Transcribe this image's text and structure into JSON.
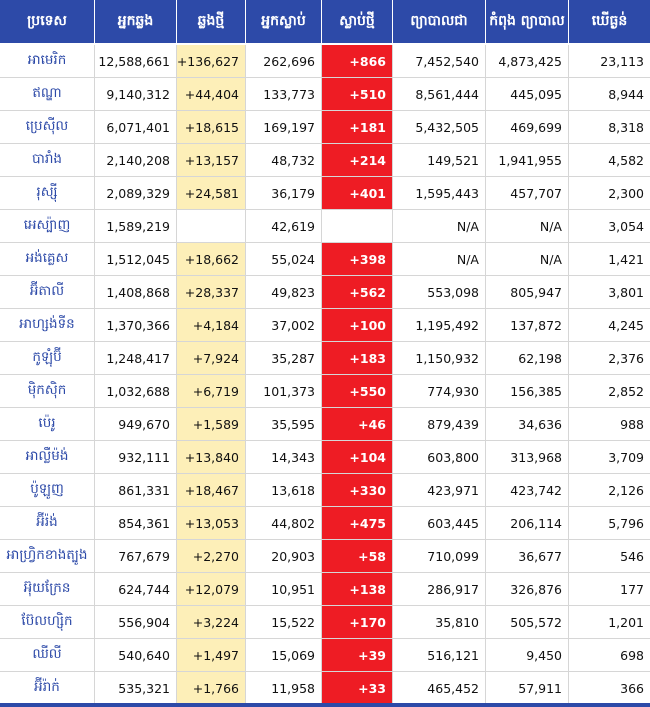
{
  "headers": [
    "ប្រទេស",
    "អ្នកឆ្លង",
    "ឆ្លងថ្មី",
    "អ្នកស្លាប់",
    "ស្លាប់ថ្មី",
    "ព្យាបាលជា",
    "កំពុង ព្យាបាល",
    "ឃើធ្ងន់"
  ],
  "rows": [
    {
      "country": "អាមេរិក",
      "cases": "12,588,661",
      "new_cases": "+136,627",
      "deaths": "262,696",
      "new_deaths": "+866",
      "recovered": "7,452,540",
      "active": "4,873,425",
      "critical": "23,113"
    },
    {
      "country": "ឥណ្ឌា",
      "cases": "9,140,312",
      "new_cases": "+44,404",
      "deaths": "133,773",
      "new_deaths": "+510",
      "recovered": "8,561,444",
      "active": "445,095",
      "critical": "8,944"
    },
    {
      "country": "ប្រេស៊ីល",
      "cases": "6,071,401",
      "new_cases": "+18,615",
      "deaths": "169,197",
      "new_deaths": "+181",
      "recovered": "5,432,505",
      "active": "469,699",
      "critical": "8,318"
    },
    {
      "country": "បារាំង",
      "cases": "2,140,208",
      "new_cases": "+13,157",
      "deaths": "48,732",
      "new_deaths": "+214",
      "recovered": "149,521",
      "active": "1,941,955",
      "critical": "4,582"
    },
    {
      "country": "រុស្ស៊ី",
      "cases": "2,089,329",
      "new_cases": "+24,581",
      "deaths": "36,179",
      "new_deaths": "+401",
      "recovered": "1,595,443",
      "active": "457,707",
      "critical": "2,300"
    },
    {
      "country": "អេស្ប៉ាញ",
      "cases": "1,589,219",
      "new_cases": "",
      "deaths": "42,619",
      "new_deaths": "",
      "recovered": "N/A",
      "active": "N/A",
      "critical": "3,054"
    },
    {
      "country": "អង់គ្លេស",
      "cases": "1,512,045",
      "new_cases": "+18,662",
      "deaths": "55,024",
      "new_deaths": "+398",
      "recovered": "N/A",
      "active": "N/A",
      "critical": "1,421"
    },
    {
      "country": "អ៊ីតាលី",
      "cases": "1,408,868",
      "new_cases": "+28,337",
      "deaths": "49,823",
      "new_deaths": "+562",
      "recovered": "553,098",
      "active": "805,947",
      "critical": "3,801"
    },
    {
      "country": "អាហ្សង់ទីន",
      "cases": "1,370,366",
      "new_cases": "+4,184",
      "deaths": "37,002",
      "new_deaths": "+100",
      "recovered": "1,195,492",
      "active": "137,872",
      "critical": "4,245"
    },
    {
      "country": "កូឡុំប៊ី",
      "cases": "1,248,417",
      "new_cases": "+7,924",
      "deaths": "35,287",
      "new_deaths": "+183",
      "recovered": "1,150,932",
      "active": "62,198",
      "critical": "2,376"
    },
    {
      "country": "ម៉ិកស៊ិក",
      "cases": "1,032,688",
      "new_cases": "+6,719",
      "deaths": "101,373",
      "new_deaths": "+550",
      "recovered": "774,930",
      "active": "156,385",
      "critical": "2,852"
    },
    {
      "country": "ប៉េរូ",
      "cases": "949,670",
      "new_cases": "+1,589",
      "deaths": "35,595",
      "new_deaths": "+46",
      "recovered": "879,439",
      "active": "34,636",
      "critical": "988"
    },
    {
      "country": "អាល្លឺម៉ង់",
      "cases": "932,111",
      "new_cases": "+13,840",
      "deaths": "14,343",
      "new_deaths": "+104",
      "recovered": "603,800",
      "active": "313,968",
      "critical": "3,709"
    },
    {
      "country": "ប៉ូឡូញ",
      "cases": "861,331",
      "new_cases": "+18,467",
      "deaths": "13,618",
      "new_deaths": "+330",
      "recovered": "423,971",
      "active": "423,742",
      "critical": "2,126"
    },
    {
      "country": "អ៊ីរ៉ង់",
      "cases": "854,361",
      "new_cases": "+13,053",
      "deaths": "44,802",
      "new_deaths": "+475",
      "recovered": "603,445",
      "active": "206,114",
      "critical": "5,796"
    },
    {
      "country": "អាហ្រ្វិកខាងត្បូង",
      "cases": "767,679",
      "new_cases": "+2,270",
      "deaths": "20,903",
      "new_deaths": "+58",
      "recovered": "710,099",
      "active": "36,677",
      "critical": "546"
    },
    {
      "country": "អ៊ុយក្រែន",
      "cases": "624,744",
      "new_cases": "+12,079",
      "deaths": "10,951",
      "new_deaths": "+138",
      "recovered": "286,917",
      "active": "326,876",
      "critical": "177"
    },
    {
      "country": "ប៊ែលហ្ស៊ិក",
      "cases": "556,904",
      "new_cases": "+3,224",
      "deaths": "15,522",
      "new_deaths": "+170",
      "recovered": "35,810",
      "active": "505,572",
      "critical": "1,201"
    },
    {
      "country": "ឈីលី",
      "cases": "540,640",
      "new_cases": "+1,497",
      "deaths": "15,069",
      "new_deaths": "+39",
      "recovered": "516,121",
      "active": "9,450",
      "critical": "698"
    },
    {
      "country": "អ៊ីរ៉ាក់",
      "cases": "535,321",
      "new_cases": "+1,766",
      "deaths": "11,958",
      "new_deaths": "+33",
      "recovered": "465,452",
      "active": "57,911",
      "critical": "366"
    }
  ],
  "colors": {
    "header": "#2d4aa8",
    "new_cases_bg": "#fdefb8",
    "new_deaths_bg": "#ee1c24",
    "country_text": "#2d4aa8"
  }
}
